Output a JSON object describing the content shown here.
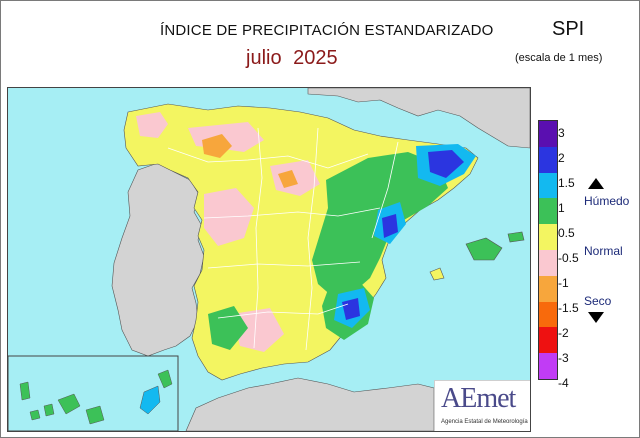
{
  "header": {
    "title": "ÍNDICE DE PRECIPITACIÓN ESTANDARIZADO",
    "period": "julio 2025",
    "index_code": "SPI",
    "scale_note": "(escala de 1 mes)"
  },
  "legend": {
    "ticks": [
      "3",
      "2",
      "1.5",
      "1",
      "0.5",
      "-0.5",
      "-1",
      "-1.5",
      "-2",
      "-3",
      "-4"
    ],
    "swatches": [
      "#5a0fb0",
      "#2b35e0",
      "#13b9f0",
      "#3cc158",
      "#f3f561",
      "#fac8d0",
      "#f7a63c",
      "#f86a0c",
      "#ee1111",
      "#c13cf5"
    ],
    "categories": {
      "wet": "Húmedo",
      "normal": "Normal",
      "dry": "Seco"
    }
  },
  "logo": {
    "name": "AEmet",
    "tagline": "Agencia Estatal de Meteorología"
  },
  "colors": {
    "sea": "#a6eef4",
    "foreign_land": "#d3d3d3",
    "normal_fill": "#f3f561",
    "region_border": "#ffffff"
  }
}
